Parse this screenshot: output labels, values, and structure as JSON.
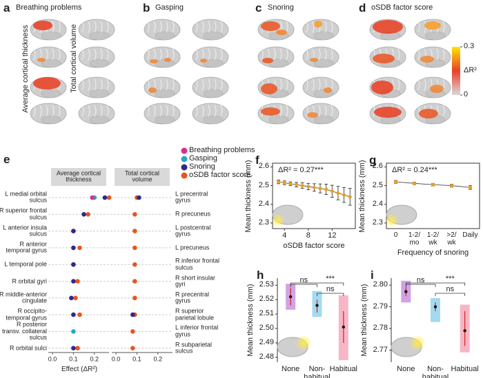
{
  "brain_panels": [
    {
      "letter": "a",
      "title": "Breathing problems"
    },
    {
      "letter": "b",
      "title": "Gasping"
    },
    {
      "letter": "c",
      "title": "Snoring"
    },
    {
      "letter": "d",
      "title": "oSDB factor score"
    }
  ],
  "row_labels": [
    "Average cortical thickness",
    "Total cortical volume"
  ],
  "colorbar": {
    "label": "ΔR²",
    "ticks": [
      0,
      0.3
    ],
    "colors": [
      "#d9d9d9",
      "#e8402a",
      "#ffe600"
    ]
  },
  "chart_data": [
    {
      "type": "dot",
      "letter": "e",
      "xlabel": "Effect (ΔR²)",
      "xlim": [
        -0.02,
        0.27
      ],
      "xticks": [
        {
          "value": 0,
          "label": "0.0"
        },
        0.1,
        0.2
      ],
      "facets": [
        {
          "title": "Average cortical thickness",
          "categories": [
            "L medial orbital sulcus",
            "R superior frontal sulcus",
            "L anterior insula sulcus",
            "R anterior temporal gyrus",
            "L temporal pole",
            "R orbital gyri",
            "R middle-anterior cingulate",
            "R occipito-temporal gyrus",
            "R posterior transv. collateral sulcus",
            "R orbital sulci"
          ]
        },
        {
          "title": "Total cortical volume",
          "categories": [
            "L precentral gyrus",
            "R precuneus",
            "L postcentral gyrus",
            "L precuneus",
            "R inferior frontal sulcus",
            "R short insular gyri",
            "R precentral gyrus",
            "R superior parietal lobule",
            "L inferior frontal gyrus",
            "R subparietal sulcus"
          ]
        }
      ],
      "series": [
        {
          "name": "Breathing problems",
          "color": "#d6308b",
          "values": [
            [
              0.19,
              null,
              null,
              null,
              null,
              null,
              null,
              null,
              null,
              null
            ],
            [
              null,
              null,
              null,
              null,
              null,
              null,
              null,
              null,
              null,
              null
            ]
          ]
        },
        {
          "name": "Gasping",
          "color": "#2aa7c9",
          "values": [
            [
              0.2,
              null,
              null,
              null,
              null,
              null,
              null,
              null,
              0.1,
              null
            ],
            [
              null,
              null,
              null,
              null,
              null,
              null,
              null,
              null,
              null,
              null
            ]
          ]
        },
        {
          "name": "Snoring",
          "color": "#2d2a8a",
          "values": [
            [
              0.25,
              0.15,
              0.1,
              0.1,
              0.1,
              0.1,
              0.09,
              0.1,
              null,
              0.1
            ],
            [
              0.11,
              null,
              null,
              null,
              null,
              null,
              null,
              0.08,
              null,
              null
            ]
          ]
        },
        {
          "name": "oSDB factor score",
          "color": "#e8561f",
          "values": [
            [
              0.27,
              0.17,
              0.1,
              0.13,
              0.1,
              0.12,
              0.11,
              0.13,
              null,
              0.12
            ],
            [
              0.1,
              0.09,
              0.09,
              0.09,
              0.09,
              0.09,
              0.09,
              0.09,
              0.08,
              0.08
            ]
          ]
        }
      ]
    },
    {
      "type": "line",
      "letter": "f",
      "annotation": "ΔR² = 0.27***",
      "xlabel": "oSDB factor score",
      "ylabel": "Mean thickness (mm)",
      "color": "#e8a020",
      "x": [
        3,
        4,
        5,
        6,
        7,
        8,
        9,
        10,
        11,
        12,
        13,
        14,
        15
      ],
      "values": [
        2.52,
        2.515,
        2.51,
        2.505,
        2.5,
        2.495,
        2.49,
        2.485,
        2.48,
        2.47,
        2.46,
        2.45,
        2.44
      ],
      "errors": [
        0.01,
        0.01,
        0.01,
        0.012,
        0.015,
        0.017,
        0.02,
        0.024,
        0.028,
        0.032,
        0.036,
        0.04,
        0.045
      ],
      "xlim": [
        2,
        15.9
      ],
      "xticks": [
        4,
        8,
        12
      ],
      "ylim": [
        2.27,
        2.62
      ],
      "yticks": [
        2.3,
        2.4,
        2.5,
        2.6
      ]
    },
    {
      "type": "line",
      "letter": "g",
      "annotation": "ΔR² = 0.24***",
      "xlabel": "Frequency of snoring",
      "ylabel": "Mean thickness (mm)",
      "color": "#e8a020",
      "categories": [
        "0",
        "1-2/ mo",
        "1-2/ wk",
        ">2/ wk",
        "Daily"
      ],
      "values": [
        2.52,
        2.512,
        2.505,
        2.5,
        2.49
      ],
      "errors": [
        0.008,
        0.007,
        0.007,
        0.008,
        0.01
      ],
      "ylim": [
        2.27,
        2.62
      ],
      "yticks": [
        2.3,
        2.4,
        2.5,
        2.6
      ]
    },
    {
      "type": "interval",
      "letter": "h",
      "ylabel": "Mean thickness (mm)",
      "categories": [
        "None",
        "Non-habitual",
        "Habitual"
      ],
      "colors": [
        "#c993e0",
        "#93d4ee",
        "#f5a9bb"
      ],
      "values": [
        2.522,
        2.516,
        2.501
      ],
      "ranges": [
        [
          2.513,
          2.531
        ],
        [
          2.508,
          2.526
        ],
        [
          2.478,
          2.523
        ]
      ],
      "errors": [
        [
          2.516,
          2.528
        ],
        [
          2.511,
          2.52
        ],
        [
          2.49,
          2.512
        ]
      ],
      "comparisons": [
        "ns",
        "***",
        "ns"
      ],
      "ylim": [
        2.4766,
        2.5349
      ],
      "yticks": [
        {
          "value": 2.48,
          "label": "2.48"
        },
        2.49,
        {
          "value": 2.5,
          "label": "2.50"
        },
        2.51,
        2.52,
        2.53
      ]
    },
    {
      "type": "interval",
      "letter": "i",
      "ylabel": "Mean thickness (mm)",
      "categories": [
        "None",
        "Non-habitual",
        "Habitual"
      ],
      "colors": [
        "#c993e0",
        "#93d4ee",
        "#f5a9bb"
      ],
      "values": [
        2.797,
        2.79,
        2.779
      ],
      "ranges": [
        [
          2.792,
          2.802
        ],
        [
          2.783,
          2.794
        ],
        [
          2.769,
          2.791
        ]
      ],
      "errors": [
        [
          2.795,
          2.799
        ],
        [
          2.788,
          2.792
        ],
        [
          2.772,
          2.788
        ]
      ],
      "comparisons": [
        "ns",
        "***",
        "ns"
      ],
      "ylim": [
        2.7645,
        2.8032
      ],
      "yticks": [
        2.77,
        2.78,
        2.79,
        {
          "value": 2.8,
          "label": "2.80"
        }
      ]
    }
  ]
}
